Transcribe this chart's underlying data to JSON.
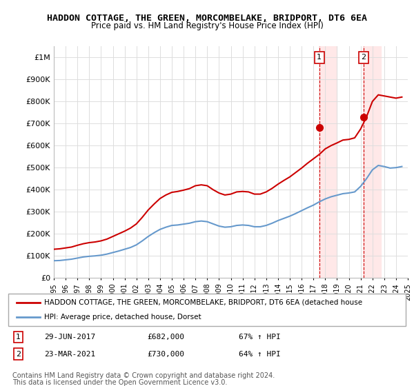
{
  "title": "HADDON COTTAGE, THE GREEN, MORCOMBELAKE, BRIDPORT, DT6 6EA",
  "subtitle": "Price paid vs. HM Land Registry's House Price Index (HPI)",
  "hpi_color": "#6699cc",
  "price_color": "#cc0000",
  "marker_color": "#cc0000",
  "vline_color": "#cc0000",
  "highlight_bg": "#ffe8e8",
  "ylim": [
    0,
    1050000
  ],
  "yticks": [
    0,
    100000,
    200000,
    300000,
    400000,
    500000,
    600000,
    700000,
    800000,
    900000,
    1000000
  ],
  "ytick_labels": [
    "£0",
    "£100K",
    "£200K",
    "£300K",
    "£400K",
    "£500K",
    "£600K",
    "£700K",
    "£800K",
    "£900K",
    "£1M"
  ],
  "transactions": [
    {
      "label": "1",
      "date": "29-JUN-2017",
      "price": 682000,
      "pct": "67% ↑ HPI",
      "year": 2017.5
    },
    {
      "label": "2",
      "date": "23-MAR-2021",
      "price": 730000,
      "pct": "64% ↑ HPI",
      "year": 2021.25
    }
  ],
  "legend_entry1": "HADDON COTTAGE, THE GREEN, MORCOMBELAKE, BRIDPORT, DT6 6EA (detached house",
  "legend_entry2": "HPI: Average price, detached house, Dorset",
  "footnote1": "Contains HM Land Registry data © Crown copyright and database right 2024.",
  "footnote2": "This data is licensed under the Open Government Licence v3.0.",
  "hpi_x": [
    1995,
    1995.5,
    1996,
    1996.5,
    1997,
    1997.5,
    1998,
    1998.5,
    1999,
    1999.5,
    2000,
    2000.5,
    2001,
    2001.5,
    2002,
    2002.5,
    2003,
    2003.5,
    2004,
    2004.5,
    2005,
    2005.5,
    2006,
    2006.5,
    2007,
    2007.5,
    2008,
    2008.5,
    2009,
    2009.5,
    2010,
    2010.5,
    2011,
    2011.5,
    2012,
    2012.5,
    2013,
    2013.5,
    2014,
    2014.5,
    2015,
    2015.5,
    2016,
    2016.5,
    2017,
    2017.5,
    2018,
    2018.5,
    2019,
    2019.5,
    2020,
    2020.5,
    2021,
    2021.5,
    2022,
    2022.5,
    2023,
    2023.5,
    2024,
    2024.5
  ],
  "hpi_y": [
    78000,
    79000,
    82000,
    85000,
    90000,
    95000,
    98000,
    100000,
    103000,
    108000,
    115000,
    122000,
    130000,
    138000,
    150000,
    168000,
    188000,
    205000,
    220000,
    230000,
    238000,
    240000,
    244000,
    248000,
    255000,
    258000,
    255000,
    245000,
    235000,
    230000,
    232000,
    238000,
    240000,
    238000,
    232000,
    232000,
    238000,
    248000,
    260000,
    270000,
    280000,
    292000,
    305000,
    318000,
    330000,
    345000,
    358000,
    368000,
    375000,
    382000,
    385000,
    390000,
    415000,
    450000,
    490000,
    510000,
    505000,
    498000,
    500000,
    505000
  ],
  "price_x": [
    1995,
    1995.5,
    1996,
    1996.5,
    1997,
    1997.5,
    1998,
    1998.5,
    1999,
    1999.5,
    2000,
    2000.5,
    2001,
    2001.5,
    2002,
    2002.5,
    2003,
    2003.5,
    2004,
    2004.5,
    2005,
    2005.5,
    2006,
    2006.5,
    2007,
    2007.5,
    2008,
    2008.5,
    2009,
    2009.5,
    2010,
    2010.5,
    2011,
    2011.5,
    2012,
    2012.5,
    2013,
    2013.5,
    2014,
    2014.5,
    2015,
    2015.5,
    2016,
    2016.5,
    2017,
    2017.5,
    2018,
    2018.5,
    2019,
    2019.5,
    2020,
    2020.5,
    2021,
    2021.5,
    2022,
    2022.5,
    2023,
    2023.5,
    2024,
    2024.5
  ],
  "price_y": [
    130000,
    132000,
    136000,
    140000,
    148000,
    155000,
    160000,
    163000,
    168000,
    176000,
    188000,
    200000,
    212000,
    226000,
    245000,
    275000,
    308000,
    335000,
    360000,
    376000,
    388000,
    392000,
    398000,
    405000,
    418000,
    422000,
    418000,
    400000,
    385000,
    376000,
    380000,
    390000,
    392000,
    390000,
    380000,
    380000,
    390000,
    406000,
    425000,
    442000,
    458000,
    478000,
    498000,
    520000,
    540000,
    560000,
    585000,
    600000,
    612000,
    625000,
    628000,
    635000,
    675000,
    730000,
    800000,
    830000,
    825000,
    820000,
    815000,
    820000
  ],
  "xticks": [
    1995,
    1996,
    1997,
    1998,
    1999,
    2000,
    2001,
    2002,
    2003,
    2004,
    2005,
    2006,
    2007,
    2008,
    2009,
    2010,
    2011,
    2012,
    2013,
    2014,
    2015,
    2016,
    2017,
    2018,
    2019,
    2020,
    2021,
    2022,
    2023,
    2024,
    2025
  ],
  "xmin": 1995,
  "xmax": 2025
}
